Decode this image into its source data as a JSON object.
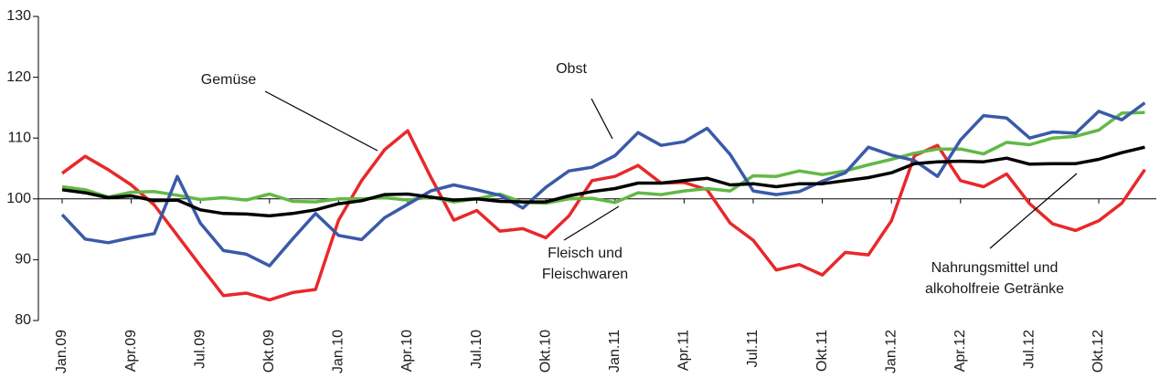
{
  "chart_data": {
    "type": "line",
    "categories": [
      "Jan.09",
      null,
      null,
      "Apr.09",
      null,
      null,
      "Jul.09",
      null,
      null,
      "Okt.09",
      null,
      null,
      "Jan.10",
      null,
      null,
      "Apr.10",
      null,
      null,
      "Jul.10",
      null,
      null,
      "Okt.10",
      null,
      null,
      "Jan.11",
      null,
      null,
      "Apr.11",
      null,
      null,
      "Jul.11",
      null,
      null,
      "Okt.11",
      null,
      null,
      "Jan.12",
      null,
      null,
      "Apr.12",
      null,
      null,
      "Jul.12",
      null,
      null,
      "Okt.12",
      null,
      null
    ],
    "ylim": [
      80,
      130
    ],
    "yticks": [
      80,
      90,
      100,
      110,
      120,
      130
    ],
    "baseline": 100,
    "series": [
      {
        "name_lines": [
          "Gemüse"
        ],
        "color": "#e8282b",
        "values": [
          104.2,
          107,
          104.8,
          102.3,
          99,
          94,
          89,
          84.1,
          84.5,
          83.4,
          84.6,
          85.1,
          96.5,
          103,
          108.1,
          111.2,
          103.6,
          96.5,
          98.1,
          94.7,
          95.1,
          93.6,
          97.2,
          103,
          103.7,
          105.5,
          102.6,
          102.7,
          101.5,
          96,
          93.2,
          88.3,
          89.2,
          87.5,
          91.2,
          90.8,
          96.4,
          107.1,
          108.8,
          103,
          102,
          104.1,
          99.2,
          95.9,
          94.8,
          96.4,
          99.3,
          104.8
        ]
      },
      {
        "name_lines": [
          "Fleisch und",
          "Fleischwaren"
        ],
        "color": "#63b847",
        "values": [
          102,
          101.5,
          100.3,
          101.1,
          101.2,
          100.6,
          99.9,
          100.2,
          99.8,
          100.8,
          99.6,
          99.5,
          100,
          100,
          100.2,
          99.8,
          100.3,
          99.5,
          100,
          100.8,
          99.4,
          99.3,
          100,
          100.1,
          99.4,
          101,
          100.7,
          101.3,
          101.7,
          101.3,
          103.8,
          103.7,
          104.6,
          104,
          104.6,
          105.6,
          106.5,
          107.5,
          108.2,
          108.2,
          107.4,
          109.3,
          108.9,
          110,
          110.3,
          111.3,
          114.1,
          114.2
        ]
      },
      {
        "name_lines": [
          "Obst"
        ],
        "color": "#3a5aa8",
        "values": [
          97.4,
          93.4,
          92.8,
          93.6,
          94.3,
          103.7,
          96,
          91.5,
          90.9,
          89,
          93.4,
          97.6,
          94,
          93.3,
          96.9,
          99.1,
          101.3,
          102.3,
          101.5,
          100.6,
          98.5,
          101.9,
          104.6,
          105.2,
          107.1,
          110.9,
          108.8,
          109.4,
          111.6,
          107.3,
          101.3,
          100.7,
          101.2,
          102.9,
          104.3,
          108.5,
          107.2,
          106.3,
          103.7,
          109.7,
          113.7,
          113.3,
          110,
          111,
          110.8,
          114.4,
          113,
          115.8
        ]
      },
      {
        "name_lines": [
          "Nahrungsmittel und",
          "alkoholfreie Getränke"
        ],
        "color": "#000000",
        "values": [
          101.5,
          101,
          100.2,
          100.5,
          99.7,
          99.8,
          98.2,
          97.6,
          97.5,
          97.2,
          97.6,
          98.2,
          99.2,
          99.7,
          100.7,
          100.8,
          100.3,
          99.8,
          100,
          99.6,
          99.5,
          99.5,
          100.5,
          101.2,
          101.7,
          102.6,
          102.6,
          103,
          103.4,
          102.3,
          102.5,
          102,
          102.5,
          102.5,
          103,
          103.5,
          104.3,
          105.8,
          106.1,
          106.2,
          106.1,
          106.7,
          105.7,
          105.8,
          105.8,
          106.5,
          107.6,
          108.5
        ]
      }
    ]
  }
}
